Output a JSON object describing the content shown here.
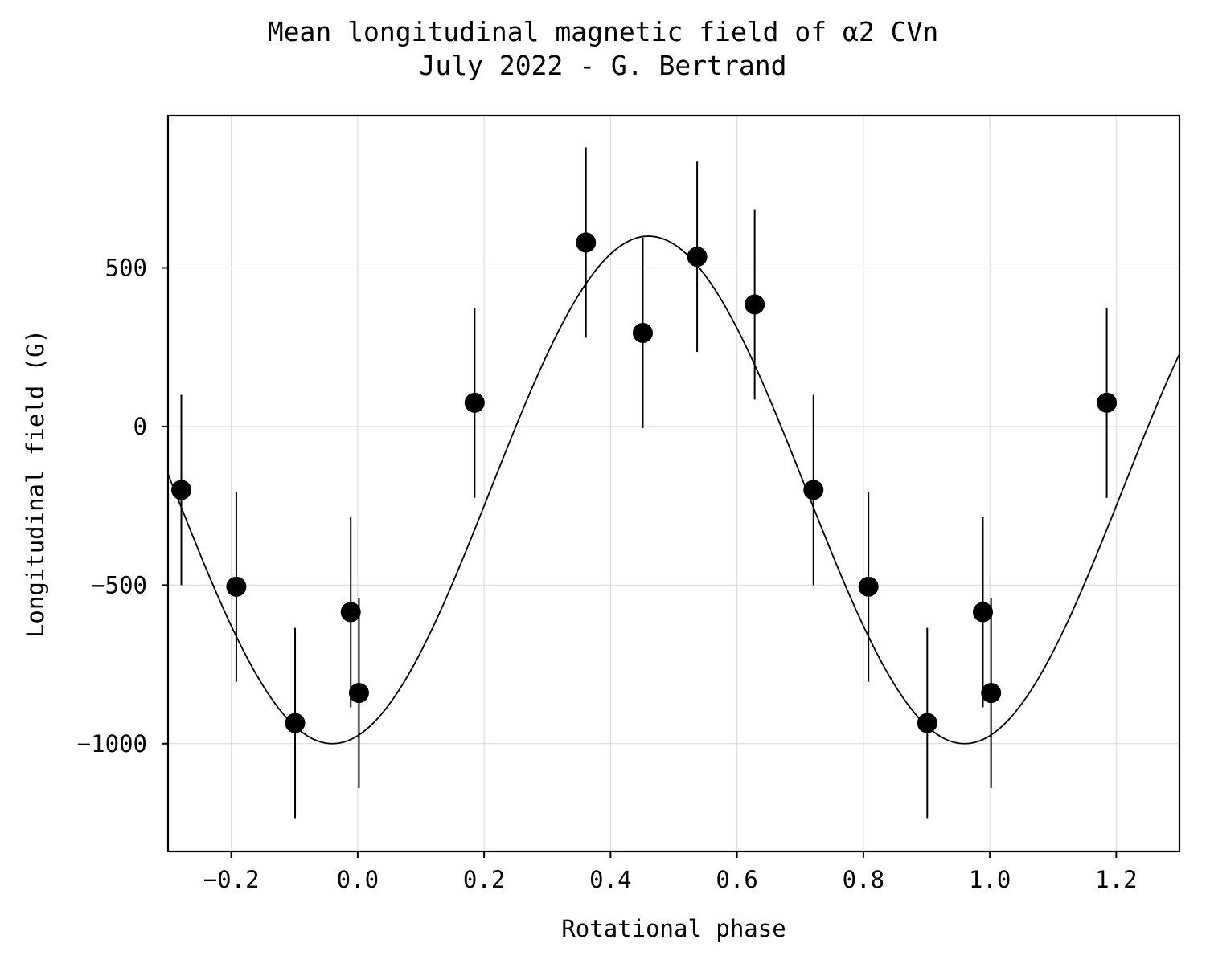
{
  "chart_data": {
    "type": "scatter",
    "title": "Mean longitudinal magnetic field of α2 CVn",
    "subtitle": "July 2022 - G. Bertrand",
    "xlabel": "Rotational phase",
    "ylabel": "Longitudinal field (G)",
    "xlim": [
      -0.3,
      1.3
    ],
    "ylim": [
      -1340,
      980
    ],
    "xticks": [
      -0.2,
      0.0,
      0.2,
      0.4,
      0.6,
      0.8,
      1.0,
      1.2
    ],
    "xtick_labels": [
      "−0.2",
      "0.0",
      "0.2",
      "0.4",
      "0.6",
      "0.8",
      "1.0",
      "1.2"
    ],
    "yticks": [
      500,
      0,
      -500,
      -1000
    ],
    "ytick_labels": [
      "500",
      "0",
      "−500",
      "−1000"
    ],
    "grid": true,
    "colors": {
      "marker": "#000000",
      "line": "#000000",
      "grid": "#dddddd"
    },
    "points": [
      {
        "x": -0.279,
        "y": -200,
        "err": 300
      },
      {
        "x": -0.192,
        "y": -505,
        "err": 300
      },
      {
        "x": -0.099,
        "y": -935,
        "err": 300
      },
      {
        "x": -0.011,
        "y": -585,
        "err": 300
      },
      {
        "x": 0.002,
        "y": -840,
        "err": 300
      },
      {
        "x": 0.185,
        "y": 75,
        "err": 300
      },
      {
        "x": 0.361,
        "y": 580,
        "err": 300
      },
      {
        "x": 0.451,
        "y": 295,
        "err": 300
      },
      {
        "x": 0.537,
        "y": 535,
        "err": 300
      },
      {
        "x": 0.628,
        "y": 385,
        "err": 300
      },
      {
        "x": 0.721,
        "y": -200,
        "err": 300
      },
      {
        "x": 0.808,
        "y": -505,
        "err": 300
      },
      {
        "x": 0.901,
        "y": -935,
        "err": 300
      },
      {
        "x": 0.989,
        "y": -585,
        "err": 300
      },
      {
        "x": 1.002,
        "y": -840,
        "err": 300
      },
      {
        "x": 1.185,
        "y": 75,
        "err": 300
      }
    ],
    "fit": {
      "mean": -200,
      "amplitude": 800,
      "peak_phase": 0.46,
      "period": 1.0
    }
  }
}
